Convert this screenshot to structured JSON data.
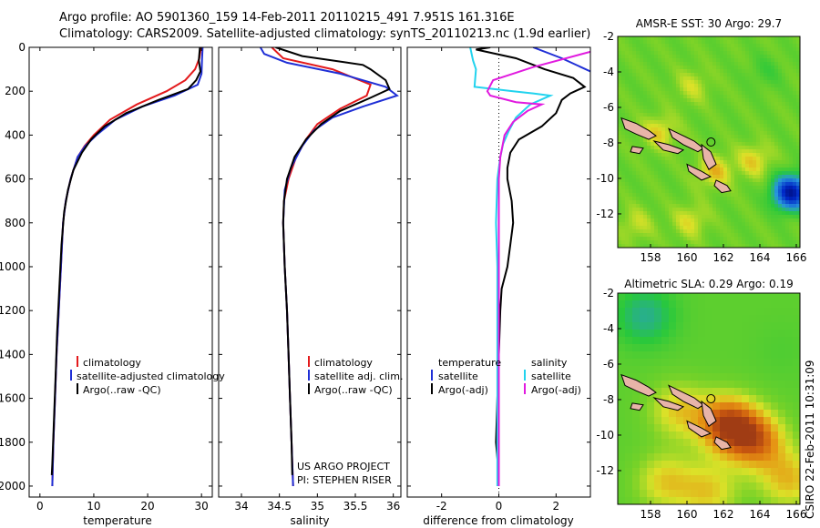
{
  "header": {
    "line1": "Argo profile: AO 5901360_159 14-Feb-2011 20110215_491 7.951S 161.316E",
    "line2": "Climatology: CARS2009. Satellite-adjusted climatology: synTS_20110213.nc (1.9d earlier)"
  },
  "side_label": "CSIRO 22-Feb-2011 10:31:09",
  "project_label": {
    "line1": "US ARGO PROJECT",
    "line2": "PI: STEPHEN RISER"
  },
  "colors": {
    "climatology": "#e31a1c",
    "satellite": "#1f2fd6",
    "argo": "#000000",
    "sal_satellite": "#22d3ee",
    "sal_argo": "#e11adf",
    "land": "#e8b4a8",
    "marker": "#ffffff"
  },
  "chart_data": [
    {
      "type": "line",
      "panel": "temperature",
      "xlabel": "temperature",
      "ylabel": "",
      "xlim": [
        -2,
        32
      ],
      "ylim": [
        2050,
        0
      ],
      "xticks": [
        0,
        10,
        20,
        30
      ],
      "yticks": [
        0,
        200,
        400,
        600,
        800,
        1000,
        1200,
        1400,
        1600,
        1800,
        2000
      ],
      "legend_placement": "lower-right",
      "series": [
        {
          "name": "climatology",
          "color_key": "climatology",
          "points": [
            [
              29.9,
              0
            ],
            [
              29.6,
              50
            ],
            [
              28.8,
              100
            ],
            [
              27,
              150
            ],
            [
              23.5,
              200
            ],
            [
              18,
              260
            ],
            [
              13,
              330
            ],
            [
              10,
              400
            ],
            [
              8.3,
              450
            ],
            [
              7,
              500
            ],
            [
              5.7,
              600
            ],
            [
              4.8,
              700
            ],
            [
              4.3,
              800
            ],
            [
              3.9,
              1000
            ],
            [
              3.5,
              1200
            ],
            [
              3.1,
              1400
            ],
            [
              2.8,
              1600
            ],
            [
              2.5,
              1800
            ],
            [
              2.3,
              2000
            ]
          ]
        },
        {
          "name": "satellite-adjusted climatology",
          "color_key": "satellite",
          "points": [
            [
              30.2,
              0
            ],
            [
              30.1,
              50
            ],
            [
              30,
              120
            ],
            [
              29.3,
              170
            ],
            [
              25,
              220
            ],
            [
              19,
              270
            ],
            [
              14,
              330
            ],
            [
              10.5,
              400
            ],
            [
              8.4,
              450
            ],
            [
              7,
              500
            ],
            [
              5.7,
              600
            ],
            [
              4.8,
              700
            ],
            [
              4.3,
              800
            ],
            [
              3.9,
              1000
            ],
            [
              3.5,
              1200
            ],
            [
              3.1,
              1400
            ],
            [
              2.8,
              1600
            ],
            [
              2.5,
              1800
            ],
            [
              2.3,
              2000
            ]
          ]
        },
        {
          "name": "Argo(..raw -QC)",
          "color_key": "argo",
          "points": [
            [
              29.7,
              0
            ],
            [
              29.5,
              60
            ],
            [
              29.8,
              110
            ],
            [
              29,
              150
            ],
            [
              27.5,
              190
            ],
            [
              22,
              240
            ],
            [
              16,
              300
            ],
            [
              12,
              360
            ],
            [
              9.5,
              420
            ],
            [
              7.8,
              480
            ],
            [
              6.2,
              560
            ],
            [
              5.2,
              650
            ],
            [
              4.5,
              750
            ],
            [
              4,
              900
            ],
            [
              3.6,
              1100
            ],
            [
              3.2,
              1300
            ],
            [
              2.9,
              1500
            ],
            [
              2.6,
              1700
            ],
            [
              2.3,
              1900
            ],
            [
              2.2,
              1950
            ]
          ]
        }
      ]
    },
    {
      "type": "line",
      "panel": "salinity",
      "xlabel": "salinity",
      "ylabel": "",
      "xlim": [
        33.7,
        36.1
      ],
      "ylim": [
        2050,
        0
      ],
      "xticks": [
        34,
        34.5,
        35,
        35.5,
        36
      ],
      "legend_placement": "lower-right",
      "series": [
        {
          "name": "climatology",
          "color_key": "climatology",
          "points": [
            [
              34.4,
              0
            ],
            [
              34.55,
              50
            ],
            [
              35.2,
              100
            ],
            [
              35.7,
              170
            ],
            [
              35.65,
              220
            ],
            [
              35.3,
              280
            ],
            [
              35.0,
              350
            ],
            [
              34.85,
              420
            ],
            [
              34.72,
              500
            ],
            [
              34.62,
              600
            ],
            [
              34.56,
              700
            ],
            [
              34.55,
              800
            ],
            [
              34.57,
              1000
            ],
            [
              34.6,
              1200
            ],
            [
              34.62,
              1400
            ],
            [
              34.64,
              1600
            ],
            [
              34.66,
              1800
            ],
            [
              34.68,
              2000
            ]
          ]
        },
        {
          "name": "satellite adj. clim.",
          "color_key": "satellite",
          "points": [
            [
              34.25,
              0
            ],
            [
              34.3,
              30
            ],
            [
              34.6,
              70
            ],
            [
              35.3,
              120
            ],
            [
              35.9,
              180
            ],
            [
              36.05,
              220
            ],
            [
              35.6,
              270
            ],
            [
              35.2,
              320
            ],
            [
              34.95,
              380
            ],
            [
              34.8,
              450
            ],
            [
              34.65,
              550
            ],
            [
              34.57,
              650
            ],
            [
              34.55,
              800
            ],
            [
              34.57,
              1000
            ],
            [
              34.6,
              1200
            ],
            [
              34.62,
              1400
            ],
            [
              34.64,
              1600
            ],
            [
              34.66,
              1800
            ],
            [
              34.68,
              2000
            ]
          ]
        },
        {
          "name": "Argo(..raw -QC)",
          "color_key": "argo",
          "points": [
            [
              34.45,
              0
            ],
            [
              34.8,
              40
            ],
            [
              35.6,
              80
            ],
            [
              35.7,
              100
            ],
            [
              35.9,
              150
            ],
            [
              35.95,
              190
            ],
            [
              35.7,
              230
            ],
            [
              35.5,
              260
            ],
            [
              35.3,
              290
            ],
            [
              35.05,
              350
            ],
            [
              34.85,
              420
            ],
            [
              34.7,
              500
            ],
            [
              34.6,
              600
            ],
            [
              34.56,
              700
            ],
            [
              34.55,
              800
            ],
            [
              34.57,
              1000
            ],
            [
              34.6,
              1200
            ],
            [
              34.62,
              1400
            ],
            [
              34.64,
              1600
            ],
            [
              34.66,
              1800
            ],
            [
              34.67,
              1950
            ]
          ]
        }
      ]
    },
    {
      "type": "line",
      "panel": "difference",
      "xlabel": "difference from climatology",
      "ylabel": "",
      "xlim": [
        -3.2,
        3.2
      ],
      "ylim": [
        2050,
        0
      ],
      "xticks": [
        -2,
        0,
        2
      ],
      "legend_placement": "lower-right",
      "legend_headers": {
        "temperature": "temperature",
        "salinity": "salinity"
      },
      "series": [
        {
          "name": "satellite",
          "group": "temperature",
          "color_key": "satellite",
          "points": [
            [
              1.2,
              0
            ],
            [
              2.2,
              50
            ],
            [
              3.2,
              110
            ]
          ]
        },
        {
          "name": "Argo(-adj)",
          "group": "temperature",
          "color_key": "argo",
          "points": [
            [
              -0.3,
              0
            ],
            [
              -0.8,
              10
            ],
            [
              0.6,
              50
            ],
            [
              1.6,
              100
            ],
            [
              2.6,
              140
            ],
            [
              3.0,
              180
            ],
            [
              2.5,
              210
            ],
            [
              2.2,
              240
            ],
            [
              2,
              300
            ],
            [
              1.5,
              360
            ],
            [
              0.7,
              420
            ],
            [
              0.4,
              480
            ],
            [
              0.3,
              550
            ],
            [
              0.3,
              600
            ],
            [
              0.45,
              700
            ],
            [
              0.5,
              800
            ],
            [
              0.4,
              900
            ],
            [
              0.3,
              1000
            ],
            [
              0.1,
              1100
            ],
            [
              0.05,
              1200
            ],
            [
              0,
              1400
            ],
            [
              -0.05,
              1600
            ],
            [
              -0.1,
              1800
            ],
            [
              0,
              1950
            ]
          ]
        },
        {
          "name": "satellite",
          "group": "salinity",
          "color_key": "sal_satellite",
          "points": [
            [
              -1,
              0
            ],
            [
              -0.9,
              60
            ],
            [
              -0.8,
              100
            ],
            [
              -0.85,
              180
            ],
            [
              0.5,
              200
            ],
            [
              1.2,
              210
            ],
            [
              1.8,
              220
            ],
            [
              1.1,
              260
            ],
            [
              0.6,
              320
            ],
            [
              0.35,
              380
            ],
            [
              0.15,
              440
            ],
            [
              0.05,
              500
            ],
            [
              -0.05,
              600
            ],
            [
              -0.1,
              800
            ],
            [
              -0.05,
              1000
            ],
            [
              -0.05,
              1200
            ],
            [
              -0.05,
              1400
            ],
            [
              -0.05,
              1600
            ],
            [
              -0.05,
              1800
            ],
            [
              -0.05,
              2000
            ]
          ]
        },
        {
          "name": "Argo(-adj)",
          "group": "salinity",
          "color_key": "sal_argo",
          "points": [
            [
              3.2,
              20
            ],
            [
              1.2,
              90
            ],
            [
              0.5,
              120
            ],
            [
              -0.2,
              150
            ],
            [
              -0.4,
              200
            ],
            [
              -0.3,
              220
            ],
            [
              0.6,
              250
            ],
            [
              1.5,
              260
            ],
            [
              1.0,
              290
            ],
            [
              0.5,
              340
            ],
            [
              0.2,
              400
            ],
            [
              0.05,
              500
            ],
            [
              0,
              600
            ],
            [
              0,
              800
            ],
            [
              0,
              1000
            ],
            [
              0,
              1200
            ],
            [
              0,
              1400
            ],
            [
              0,
              1600
            ],
            [
              0,
              1800
            ],
            [
              0,
              2000
            ]
          ]
        }
      ]
    },
    {
      "type": "heatmap",
      "panel": "sst_map",
      "title": "AMSR-E SST: 30 Argo: 29.7",
      "xlim": [
        156.2,
        166.2
      ],
      "ylim": [
        -13.9,
        -2
      ],
      "xticks": [
        158,
        160,
        162,
        164,
        166
      ],
      "yticks": [
        -2,
        -4,
        -6,
        -8,
        -10,
        -12
      ],
      "argo_position": [
        161.316,
        -7.951
      ],
      "blobs": [
        {
          "x": 160.3,
          "y": -4.8,
          "v": 0.45
        },
        {
          "x": 158.5,
          "y": -7.4,
          "v": 0.55
        },
        {
          "x": 161.5,
          "y": -9.6,
          "v": 0.6
        },
        {
          "x": 163.7,
          "y": -9.0,
          "v": 0.55
        },
        {
          "x": 160.2,
          "y": -12.4,
          "v": 0.5
        },
        {
          "x": 164.3,
          "y": -4.0,
          "v": 0.1
        },
        {
          "x": 165.7,
          "y": -10.8,
          "v": -1.2
        },
        {
          "x": 157.2,
          "y": -12.6,
          "v": 0.45
        }
      ],
      "base_value": 0.25
    },
    {
      "type": "heatmap",
      "panel": "sla_map",
      "title": "Altimetric SLA: 0.29 Argo: 0.19",
      "xlim": [
        156.2,
        166.2
      ],
      "ylim": [
        -13.9,
        -2
      ],
      "xticks": [
        158,
        160,
        162,
        164,
        166
      ],
      "yticks": [
        -2,
        -4,
        -6,
        -8,
        -10,
        -12
      ],
      "argo_position": [
        161.316,
        -7.951
      ],
      "blobs": [
        {
          "x": 162.2,
          "y": -9.4,
          "v": 0.95
        },
        {
          "x": 163.8,
          "y": -10.3,
          "v": 0.8
        },
        {
          "x": 159.5,
          "y": -8.6,
          "v": 0.55
        },
        {
          "x": 157.7,
          "y": -3.3,
          "v": -0.2
        },
        {
          "x": 158.8,
          "y": -12.6,
          "v": 0.55
        },
        {
          "x": 165.2,
          "y": -5.2,
          "v": 0.15
        },
        {
          "x": 161.2,
          "y": -13.2,
          "v": 0.55
        },
        {
          "x": 165.6,
          "y": -12.5,
          "v": 0.6
        }
      ],
      "base_value": 0.2
    }
  ]
}
